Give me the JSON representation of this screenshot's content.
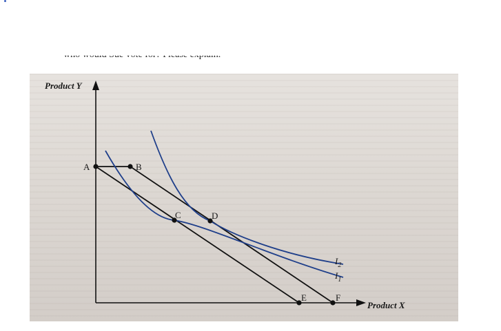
{
  "header_text": "who would Sue vote for? Please explain.",
  "diagram": {
    "y_axis_label": "Product Y",
    "x_axis_label": "Product X",
    "points": {
      "A": "A",
      "B": "B",
      "C": "C",
      "D": "D",
      "E": "E",
      "F": "F"
    },
    "curves": {
      "I1": {
        "main": "I",
        "sub": "1"
      },
      "I2": {
        "main": "I",
        "sub": "2"
      }
    }
  },
  "colors": {
    "axis": "#111111",
    "budget_lines": "#111111",
    "indifference_curves": "#1f3f8a",
    "background": "#e0dcd7"
  }
}
